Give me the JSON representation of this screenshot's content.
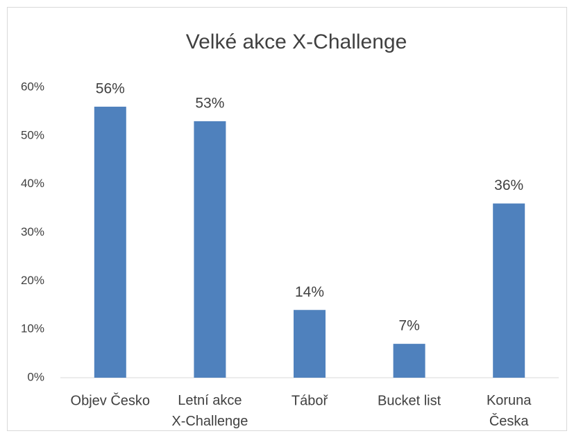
{
  "chart_data": {
    "type": "bar",
    "title": "Velké akce X-Challenge",
    "categories": [
      "Objev Česko",
      "Letní akce\nX-Challenge",
      "Táboř",
      "Bucket list",
      "Koruna\nČeska"
    ],
    "values": [
      56,
      53,
      14,
      7,
      36
    ],
    "value_labels": [
      "56%",
      "53%",
      "14%",
      "7%",
      "36%"
    ],
    "color": "#4f81bd",
    "ylim": [
      0,
      60
    ],
    "yticks": [
      {
        "value": 0,
        "label": "0%"
      },
      {
        "value": 10,
        "label": "10%"
      },
      {
        "value": 20,
        "label": "20%"
      },
      {
        "value": 30,
        "label": "30%"
      },
      {
        "value": 40,
        "label": "40%"
      },
      {
        "value": 50,
        "label": "50%"
      },
      {
        "value": 60,
        "label": "60%"
      }
    ],
    "grid": false
  }
}
